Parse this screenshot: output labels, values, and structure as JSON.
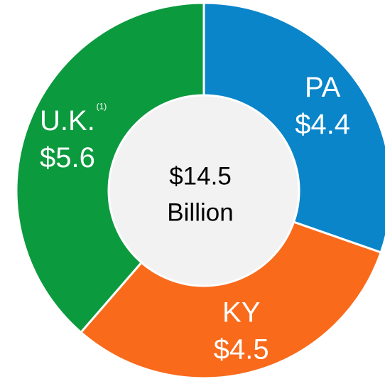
{
  "chart_data": {
    "type": "pie",
    "categories": [
      "PA",
      "KY",
      "U.K."
    ],
    "values": [
      4.4,
      4.5,
      5.6
    ],
    "value_labels": [
      "$4.4",
      "$4.5",
      "$5.6"
    ],
    "colors": [
      "#0a85c9",
      "#f96a1b",
      "#0b9a3d"
    ],
    "center_label": "$14.5",
    "center_sublabel": "Billion",
    "annotations": [
      {
        "category": 2,
        "text": "(1)"
      }
    ]
  }
}
